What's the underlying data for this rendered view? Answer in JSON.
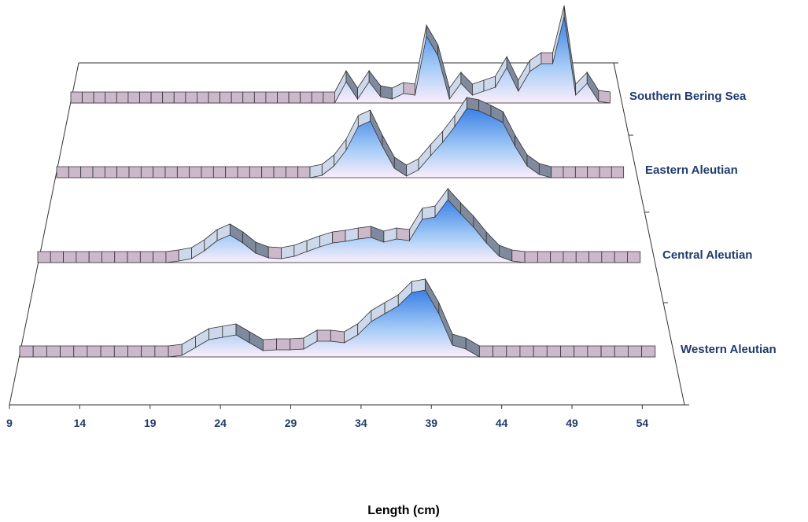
{
  "chart_data": {
    "type": "area3d",
    "x_label": "Length (cm)",
    "x": [
      9,
      10,
      11,
      12,
      13,
      14,
      15,
      16,
      17,
      18,
      19,
      20,
      21,
      22,
      23,
      24,
      25,
      26,
      27,
      28,
      29,
      30,
      31,
      32,
      33,
      34,
      35,
      36,
      37,
      38,
      39,
      40,
      41,
      42,
      43,
      44,
      45,
      46,
      47,
      48,
      49,
      50,
      51,
      52,
      53,
      54,
      55,
      56
    ],
    "xlim": [
      9,
      57
    ],
    "xticks": [
      9,
      14,
      19,
      24,
      29,
      34,
      39,
      44,
      49,
      54
    ],
    "ylim": [
      0,
      120
    ],
    "series": [
      {
        "name": "Western Aleutian",
        "color": "#3a80e6",
        "values": [
          0,
          0,
          0,
          0,
          0,
          0,
          0,
          0,
          0,
          0,
          0,
          0,
          2,
          12,
          22,
          25,
          28,
          18,
          8,
          9,
          9,
          10,
          20,
          20,
          18,
          28,
          45,
          55,
          65,
          82,
          85,
          55,
          15,
          10,
          0,
          0,
          0,
          0,
          0,
          0,
          0,
          0,
          0,
          0,
          0,
          0,
          0,
          0
        ]
      },
      {
        "name": "Central Aleutian",
        "color": "#3a80e6",
        "values": [
          0,
          0,
          0,
          0,
          0,
          0,
          0,
          0,
          0,
          0,
          0,
          2,
          5,
          15,
          28,
          35,
          25,
          12,
          6,
          5,
          8,
          14,
          20,
          25,
          27,
          30,
          32,
          26,
          30,
          28,
          55,
          58,
          80,
          62,
          45,
          25,
          8,
          2,
          0,
          0,
          0,
          0,
          0,
          0,
          0,
          0,
          0,
          0
        ]
      },
      {
        "name": "Eastern Aleutian",
        "color": "#3a80e6",
        "values": [
          0,
          0,
          0,
          0,
          0,
          0,
          0,
          0,
          0,
          0,
          0,
          0,
          0,
          0,
          0,
          0,
          0,
          0,
          0,
          0,
          0,
          0,
          3,
          15,
          35,
          65,
          72,
          40,
          12,
          2,
          10,
          28,
          45,
          65,
          88,
          85,
          78,
          70,
          40,
          15,
          4,
          0,
          0,
          0,
          0,
          0,
          0,
          0
        ]
      },
      {
        "name": "Southern Bering Sea",
        "color": "#3a80e6",
        "values": [
          0,
          0,
          0,
          0,
          0,
          0,
          0,
          0,
          0,
          0,
          0,
          0,
          0,
          0,
          0,
          0,
          0,
          0,
          0,
          0,
          0,
          0,
          0,
          0,
          27,
          5,
          27,
          8,
          5,
          12,
          10,
          85,
          60,
          5,
          25,
          10,
          15,
          20,
          45,
          15,
          40,
          50,
          50,
          110,
          10,
          25,
          2,
          0
        ]
      }
    ]
  }
}
